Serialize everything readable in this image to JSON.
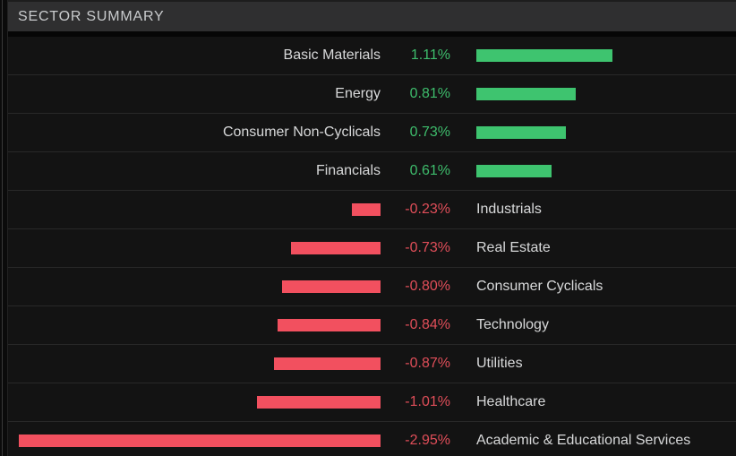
{
  "header": {
    "title": "SECTOR SUMMARY"
  },
  "colors": {
    "positive_bar": "#3ec46f",
    "positive_text": "#3ebd6c",
    "negative_bar": "#f2505f",
    "negative_text": "#e04e59",
    "header_bg": "#2f2f30",
    "row_bg": "#131313",
    "label_text": "#d8d9da"
  },
  "chart_data": {
    "type": "bar",
    "orientation": "horizontal",
    "diverging": true,
    "title": "SECTOR SUMMARY",
    "unit": "%",
    "categories": [
      "Basic Materials",
      "Energy",
      "Consumer Non-Cyclicals",
      "Financials",
      "Industrials",
      "Real Estate",
      "Consumer Cyclicals",
      "Technology",
      "Utilities",
      "Healthcare",
      "Academic & Educational Services"
    ],
    "values": [
      1.11,
      0.81,
      0.73,
      0.61,
      -0.23,
      -0.73,
      -0.8,
      -0.84,
      -0.87,
      -1.01,
      -2.95
    ],
    "value_labels": [
      "1.11%",
      "0.81%",
      "0.73%",
      "0.61%",
      "-0.23%",
      "-0.73%",
      "-0.80%",
      "-0.84%",
      "-0.87%",
      "-1.01%",
      "-2.95%"
    ],
    "legend": "none",
    "grid": "off"
  }
}
